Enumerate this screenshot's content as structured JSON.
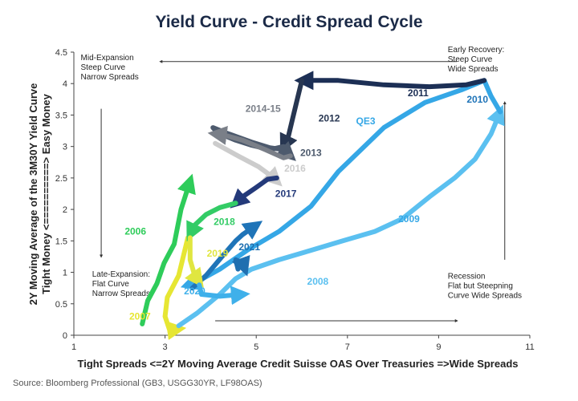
{
  "title": "Yield Curve - Credit Spread Cycle",
  "source": "Source: Bloomberg Professional (GB3, USGG30YR, LF98OAS)",
  "chart_data": {
    "type": "line",
    "title": "Yield Curve - Credit Spread Cycle",
    "xlabel": "Tight Spreads <=2Y Moving Average Credit Suisse OAS Over Treasuries =>Wide Spreads",
    "ylabel": "2Y Moving Average of the 3M30Y Yield Curve",
    "ylabel2": "Tight Money <==========> Easy Money",
    "xlim": [
      1,
      11
    ],
    "ylim": [
      0,
      4.5
    ],
    "x_ticks": [
      "1",
      "3",
      "5",
      "7",
      "9",
      "11"
    ],
    "y_ticks": [
      "0",
      "0.5",
      "1",
      "1.5",
      "2",
      "2.5",
      "3",
      "3.5",
      "4",
      "4.5"
    ],
    "grid": false,
    "quadrant_labels": [
      {
        "lines": [
          "Mid-Expansion",
          "Steep Curve",
          "Narrow Spreads"
        ],
        "x": 1.15,
        "y": 4.37
      },
      {
        "lines": [
          "Early Recovery:",
          "Steep Curve",
          "Wide Spreads"
        ],
        "x": 9.2,
        "y": 4.5
      },
      {
        "lines": [
          "Late-Expansion:",
          "Flat Curve",
          "Narrow Spreads"
        ],
        "x": 1.4,
        "y": 0.93
      },
      {
        "lines": [
          "Recession",
          "Flat but Steepning",
          "Curve  Wide Spreads"
        ],
        "x": 9.2,
        "y": 0.9
      }
    ],
    "series": [
      {
        "name": "2006",
        "color": "#2ecc5a",
        "label_xy": [
          2.35,
          1.6
        ],
        "points": [
          [
            2.5,
            0.18
          ],
          [
            2.62,
            0.55
          ],
          [
            2.82,
            0.82
          ],
          [
            2.98,
            1.15
          ],
          [
            3.2,
            1.45
          ],
          [
            3.35,
            2.0
          ],
          [
            3.55,
            2.45
          ]
        ]
      },
      {
        "name": "2007",
        "color": "#e6e633",
        "label_xy": [
          2.45,
          0.25
        ],
        "points": [
          [
            3.5,
            1.55
          ],
          [
            3.3,
            0.95
          ],
          [
            3.05,
            0.6
          ],
          [
            3.0,
            0.3
          ],
          [
            3.1,
            0.08
          ],
          [
            3.3,
            0.1
          ]
        ]
      },
      {
        "name": "2008",
        "color": "#5bc0f0",
        "label_xy": [
          6.35,
          0.8
        ],
        "points": [
          [
            3.3,
            0.15
          ],
          [
            3.7,
            0.35
          ],
          [
            4.2,
            0.65
          ],
          [
            4.55,
            0.9
          ],
          [
            4.9,
            1.05
          ],
          [
            5.5,
            1.2
          ],
          [
            6.2,
            1.35
          ],
          [
            6.9,
            1.5
          ],
          [
            7.6,
            1.65
          ],
          [
            8.2,
            1.85
          ],
          [
            8.8,
            2.2
          ],
          [
            9.35,
            2.5
          ],
          [
            9.8,
            2.8
          ],
          [
            10.15,
            3.2
          ],
          [
            10.35,
            3.55
          ]
        ]
      },
      {
        "name": "2009",
        "color": "#35a7e6",
        "label_xy": [
          8.35,
          1.8
        ],
        "points": [
          [
            10.35,
            3.55
          ],
          [
            10.15,
            3.8
          ],
          [
            10.0,
            4.05
          ],
          [
            9.5,
            3.9
          ],
          [
            8.7,
            3.7
          ],
          [
            7.8,
            3.3
          ],
          [
            6.8,
            2.6
          ],
          [
            6.2,
            2.05
          ],
          [
            5.5,
            1.65
          ],
          [
            4.8,
            1.35
          ],
          [
            4.2,
            1.05
          ],
          [
            3.7,
            0.85
          ],
          [
            3.5,
            0.8
          ]
        ]
      },
      {
        "name": "2010",
        "color": "#1f74b8",
        "label_xy": [
          9.85,
          3.7
        ],
        "points": [
          [
            3.6,
            0.75
          ],
          [
            3.9,
            0.95
          ],
          [
            4.25,
            1.25
          ],
          [
            4.55,
            1.5
          ],
          [
            4.7,
            1.6
          ],
          [
            5.0,
            1.75
          ]
        ]
      },
      {
        "name": "2011",
        "color": "#1c2f55",
        "label_xy": [
          8.55,
          3.8
        ],
        "points": [
          [
            10.0,
            4.05
          ],
          [
            9.6,
            3.98
          ],
          [
            8.8,
            3.95
          ],
          [
            7.8,
            3.98
          ],
          [
            6.8,
            4.05
          ],
          [
            6.0,
            4.05
          ]
        ]
      },
      {
        "name": "2012",
        "color": "#273651",
        "label_xy": [
          6.6,
          3.4
        ],
        "points": [
          [
            6.0,
            4.05
          ],
          [
            5.9,
            3.75
          ],
          [
            5.8,
            3.45
          ],
          [
            5.7,
            3.15
          ],
          [
            5.6,
            3.0
          ]
        ]
      },
      {
        "name": "2013",
        "color": "#4d5a6d",
        "label_xy": [
          6.2,
          2.85
        ],
        "points": [
          [
            5.6,
            3.0
          ],
          [
            5.3,
            2.95
          ],
          [
            4.9,
            3.02
          ],
          [
            4.55,
            3.1
          ],
          [
            4.15,
            3.22
          ],
          [
            4.05,
            3.3
          ],
          [
            4.4,
            3.2
          ],
          [
            4.9,
            3.07
          ],
          [
            5.3,
            2.98
          ],
          [
            5.6,
            2.95
          ],
          [
            5.75,
            2.85
          ]
        ]
      },
      {
        "name": "2014-15",
        "color": "#7a7f88",
        "label_xy": [
          5.15,
          3.55
        ],
        "points": [
          [
            5.75,
            2.85
          ],
          [
            5.6,
            2.82
          ],
          [
            5.2,
            2.95
          ],
          [
            4.7,
            3.1
          ],
          [
            4.3,
            3.18
          ],
          [
            4.1,
            3.2
          ]
        ]
      },
      {
        "name": "2016",
        "color": "#cccccc",
        "label_xy": [
          5.85,
          2.6
        ],
        "points": [
          [
            4.1,
            3.05
          ],
          [
            4.6,
            2.85
          ],
          [
            5.05,
            2.68
          ],
          [
            5.35,
            2.52
          ],
          [
            5.45,
            2.45
          ]
        ]
      },
      {
        "name": "2017",
        "color": "#243a7a",
        "label_xy": [
          5.65,
          2.2
        ],
        "points": [
          [
            5.45,
            2.5
          ],
          [
            5.25,
            2.48
          ],
          [
            5.0,
            2.35
          ],
          [
            4.7,
            2.2
          ],
          [
            4.55,
            2.1
          ]
        ]
      },
      {
        "name": "2018",
        "color": "#33cc66",
        "label_xy": [
          4.3,
          1.75
        ],
        "points": [
          [
            4.55,
            2.1
          ],
          [
            4.2,
            2.03
          ],
          [
            3.9,
            1.92
          ],
          [
            3.65,
            1.75
          ],
          [
            3.55,
            1.6
          ]
        ]
      },
      {
        "name": "2019",
        "color": "#e0e640",
        "label_xy": [
          4.15,
          1.25
        ],
        "points": [
          [
            3.55,
            1.55
          ],
          [
            3.55,
            1.2
          ],
          [
            3.65,
            0.95
          ],
          [
            3.75,
            0.85
          ]
        ]
      },
      {
        "name": "2020",
        "color": "#3fb0ea",
        "label_xy": [
          3.65,
          0.65
        ],
        "points": [
          [
            3.75,
            0.8
          ],
          [
            3.8,
            0.65
          ],
          [
            4.2,
            0.62
          ],
          [
            4.7,
            0.65
          ]
        ]
      },
      {
        "name": "2021",
        "color": "#1f6fb0",
        "label_xy": [
          4.85,
          1.35
        ],
        "points": [
          [
            4.6,
            1.05
          ],
          [
            4.55,
            1.2
          ],
          [
            4.7,
            1.15
          ],
          [
            4.75,
            1.05
          ]
        ]
      }
    ],
    "annotations": [
      {
        "text": "QE3",
        "x": 7.4,
        "y": 3.35,
        "color": "#35a7e6"
      }
    ]
  }
}
